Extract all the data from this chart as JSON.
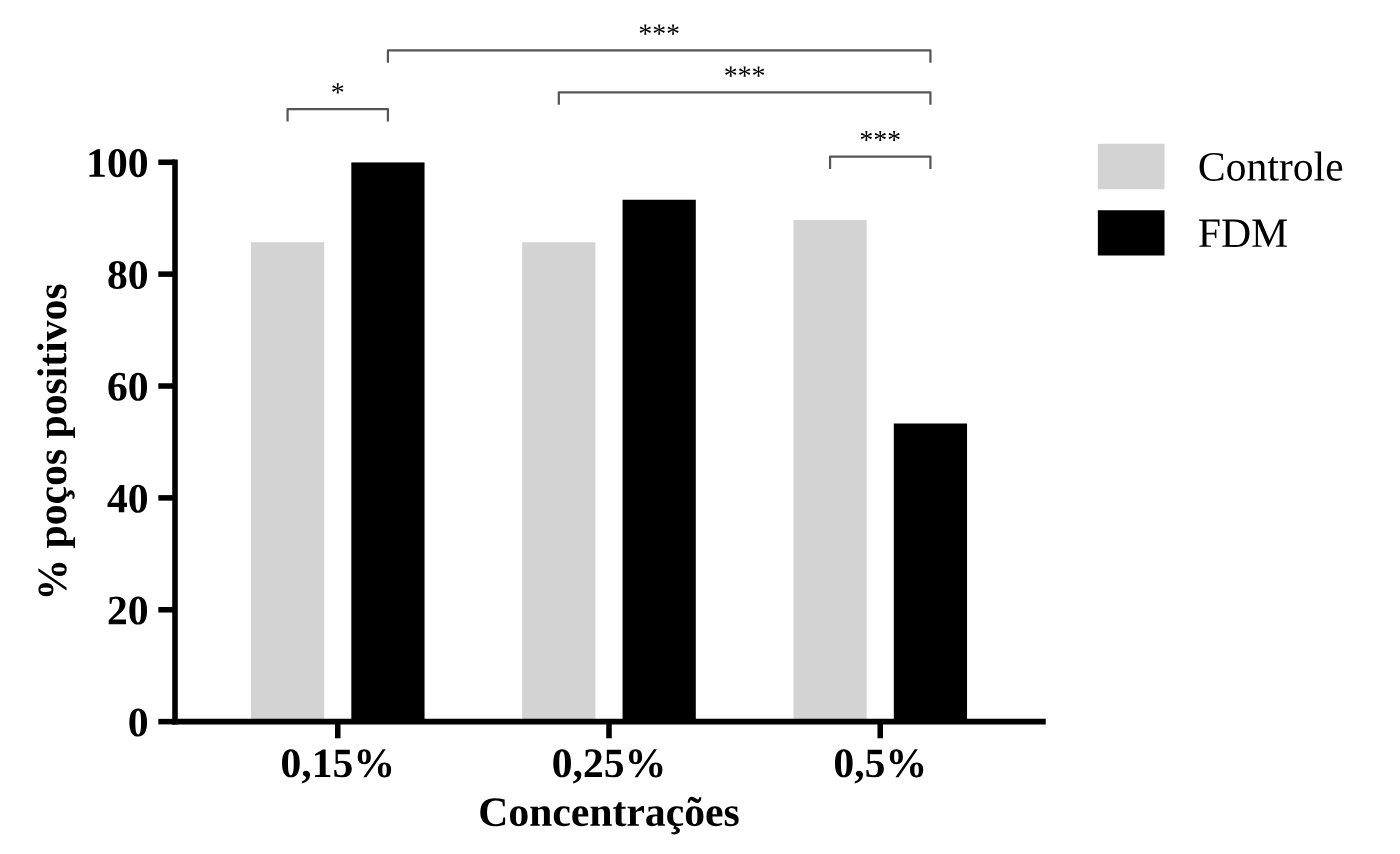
{
  "chart_data": {
    "type": "bar",
    "xlabel": "Concentrações",
    "ylabel": "% poços positivos",
    "categories": [
      "0,15%",
      "0,25%",
      "0,5%"
    ],
    "series": [
      {
        "name": "Controle",
        "color": "#d3d3d3",
        "values": [
          85.7,
          85.7,
          89.7
        ]
      },
      {
        "name": "FDM",
        "color": "#000000",
        "values": [
          100,
          93.3,
          53.3
        ]
      }
    ],
    "ylim": [
      0,
      100
    ],
    "yticks": [
      0,
      20,
      40,
      60,
      80,
      100
    ],
    "grid": false,
    "legend": "top right",
    "annotations": [
      "*",
      "***",
      "***",
      "***"
    ]
  }
}
